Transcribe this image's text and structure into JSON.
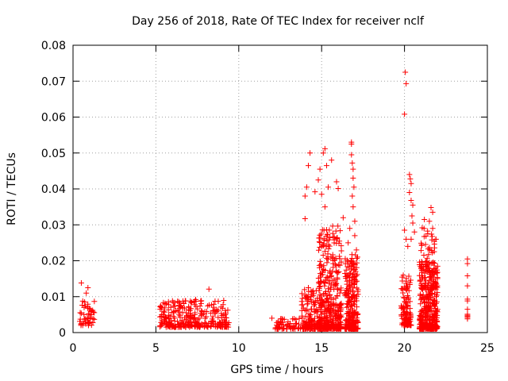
{
  "chart_data": {
    "type": "scatter",
    "title": "Day 256 of 2018, Rate Of TEC Index for receiver nclf",
    "xlabel": "GPS time / hours",
    "ylabel": "ROTI / TECUs",
    "xlim": [
      0,
      25
    ],
    "ylim": [
      0,
      0.08
    ],
    "x_ticks": [
      0,
      5,
      10,
      15,
      20,
      25
    ],
    "y_ticks": [
      "0",
      "0.01",
      "0.02",
      "0.03",
      "0.04",
      "0.05",
      "0.06",
      "0.07",
      "0.08"
    ],
    "grid": true,
    "marker": "+",
    "color": "#ff0000",
    "clusters": [
      {
        "t0": 0.4,
        "t1": 1.3,
        "y0": 0.002,
        "y1": 0.009,
        "n": 45
      },
      {
        "t0": 5.2,
        "t1": 9.4,
        "y0": 0.0015,
        "y1": 0.009,
        "n": 320
      },
      {
        "t0": 12.2,
        "t1": 13.8,
        "y0": 0.001,
        "y1": 0.004,
        "n": 60
      },
      {
        "t0": 13.8,
        "t1": 15.0,
        "y0": 0.001,
        "y1": 0.012,
        "n": 160
      },
      {
        "t0": 14.8,
        "t1": 16.2,
        "y0": 0.001,
        "y1": 0.03,
        "n": 380
      },
      {
        "t0": 16.4,
        "t1": 17.2,
        "y0": 0.001,
        "y1": 0.022,
        "n": 260
      },
      {
        "t0": 19.8,
        "t1": 20.4,
        "y0": 0.002,
        "y1": 0.016,
        "n": 120
      },
      {
        "t0": 20.9,
        "t1": 22.0,
        "y0": 0.001,
        "y1": 0.02,
        "n": 340
      },
      {
        "t0": 21.0,
        "t1": 21.9,
        "y0": 0.012,
        "y1": 0.03,
        "n": 80
      }
    ],
    "points": [
      [
        0.5,
        0.0138
      ],
      [
        0.7,
        0.0085
      ],
      [
        0.9,
        0.0125
      ],
      [
        0.8,
        0.011
      ],
      [
        6.0,
        0.0088
      ],
      [
        7.4,
        0.0092
      ],
      [
        8.2,
        0.0121
      ],
      [
        12.0,
        0.004
      ],
      [
        13.8,
        0.0077
      ],
      [
        14.2,
        0.0125
      ],
      [
        14.0,
        0.0317
      ],
      [
        14.0,
        0.038
      ],
      [
        14.1,
        0.0405
      ],
      [
        14.2,
        0.0465
      ],
      [
        14.3,
        0.05
      ],
      [
        14.6,
        0.0392
      ],
      [
        14.8,
        0.0425
      ],
      [
        14.9,
        0.0455
      ],
      [
        15.2,
        0.0512
      ],
      [
        15.1,
        0.05
      ],
      [
        15.3,
        0.0465
      ],
      [
        15.4,
        0.0405
      ],
      [
        15.0,
        0.0385
      ],
      [
        15.2,
        0.035
      ],
      [
        15.6,
        0.048
      ],
      [
        15.9,
        0.042
      ],
      [
        16.0,
        0.0401
      ],
      [
        16.3,
        0.032
      ],
      [
        16.8,
        0.053
      ],
      [
        16.8,
        0.0525
      ],
      [
        16.8,
        0.0495
      ],
      [
        16.85,
        0.0472
      ],
      [
        16.9,
        0.0455
      ],
      [
        16.9,
        0.043
      ],
      [
        16.95,
        0.0405
      ],
      [
        16.85,
        0.038
      ],
      [
        16.9,
        0.035
      ],
      [
        17.0,
        0.031
      ],
      [
        16.7,
        0.029
      ],
      [
        17.0,
        0.027
      ],
      [
        16.6,
        0.025
      ],
      [
        17.1,
        0.023
      ],
      [
        20.05,
        0.0725
      ],
      [
        20.1,
        0.0693
      ],
      [
        20.0,
        0.0608
      ],
      [
        20.0,
        0.0285
      ],
      [
        20.1,
        0.026
      ],
      [
        20.2,
        0.024
      ],
      [
        20.3,
        0.044
      ],
      [
        20.35,
        0.0428
      ],
      [
        20.4,
        0.0415
      ],
      [
        20.3,
        0.039
      ],
      [
        20.4,
        0.0368
      ],
      [
        20.5,
        0.0355
      ],
      [
        20.45,
        0.0325
      ],
      [
        20.5,
        0.0305
      ],
      [
        20.6,
        0.028
      ],
      [
        20.4,
        0.026
      ],
      [
        21.2,
        0.0315
      ],
      [
        21.6,
        0.0348
      ],
      [
        21.7,
        0.0335
      ],
      [
        21.5,
        0.031
      ],
      [
        21.7,
        0.029
      ],
      [
        21.9,
        0.026
      ],
      [
        23.8,
        0.0205
      ],
      [
        23.8,
        0.0192
      ],
      [
        23.8,
        0.0158
      ],
      [
        23.8,
        0.013
      ],
      [
        23.8,
        0.0093
      ],
      [
        23.8,
        0.0088
      ],
      [
        23.8,
        0.0065
      ],
      [
        23.8,
        0.0051
      ],
      [
        23.8,
        0.0048
      ],
      [
        23.8,
        0.0045
      ],
      [
        23.8,
        0.0042
      ],
      [
        23.8,
        0.0038
      ]
    ]
  }
}
